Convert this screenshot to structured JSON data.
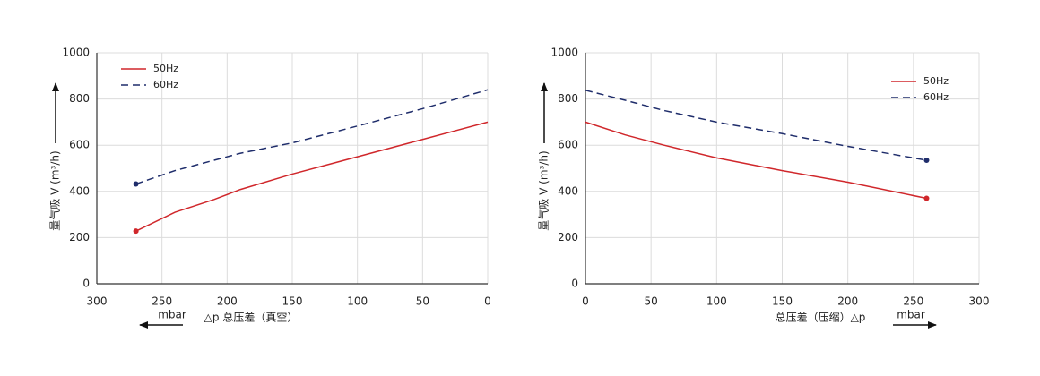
{
  "chart_data": [
    {
      "type": "line",
      "xlabel": "△p 总压差（真空）",
      "ylabel": "量气吸 V (m³/h)",
      "unit": "mbar",
      "unit_arrow": "left",
      "x": [
        270,
        240,
        210,
        190,
        150,
        100,
        50,
        0
      ],
      "series": [
        {
          "name": "50Hz",
          "color": "#d0272b",
          "dash": false,
          "values": [
            228,
            310,
            365,
            408,
            475,
            550,
            625,
            700
          ]
        },
        {
          "name": "60Hz",
          "color": "#1f2d6b",
          "dash": true,
          "values": [
            432,
            490,
            535,
            565,
            610,
            683,
            758,
            840
          ]
        }
      ],
      "xlim": [
        300,
        0
      ],
      "xticks": [
        300,
        250,
        200,
        150,
        100,
        50,
        0
      ],
      "ylim": [
        0,
        1000
      ],
      "yticks": [
        0,
        200,
        400,
        600,
        800,
        1000
      ],
      "grid": true,
      "legend": "top-left",
      "end_markers": true
    },
    {
      "type": "line",
      "xlabel": "总压差（压缩）△p",
      "ylabel": "量气吸 V (m³/h)",
      "unit": "mbar",
      "unit_arrow": "right",
      "x": [
        0,
        30,
        60,
        100,
        150,
        200,
        260
      ],
      "series": [
        {
          "name": "50Hz",
          "color": "#d0272b",
          "dash": false,
          "values": [
            700,
            645,
            600,
            545,
            490,
            440,
            370
          ]
        },
        {
          "name": "60Hz",
          "color": "#1f2d6b",
          "dash": true,
          "values": [
            838,
            795,
            750,
            700,
            650,
            595,
            535
          ]
        }
      ],
      "xlim": [
        0,
        300
      ],
      "xticks": [
        0,
        50,
        100,
        150,
        200,
        250,
        300
      ],
      "ylim": [
        0,
        1000
      ],
      "yticks": [
        0,
        200,
        400,
        600,
        800,
        1000
      ],
      "grid": true,
      "legend": "top-right",
      "end_markers": true
    }
  ]
}
